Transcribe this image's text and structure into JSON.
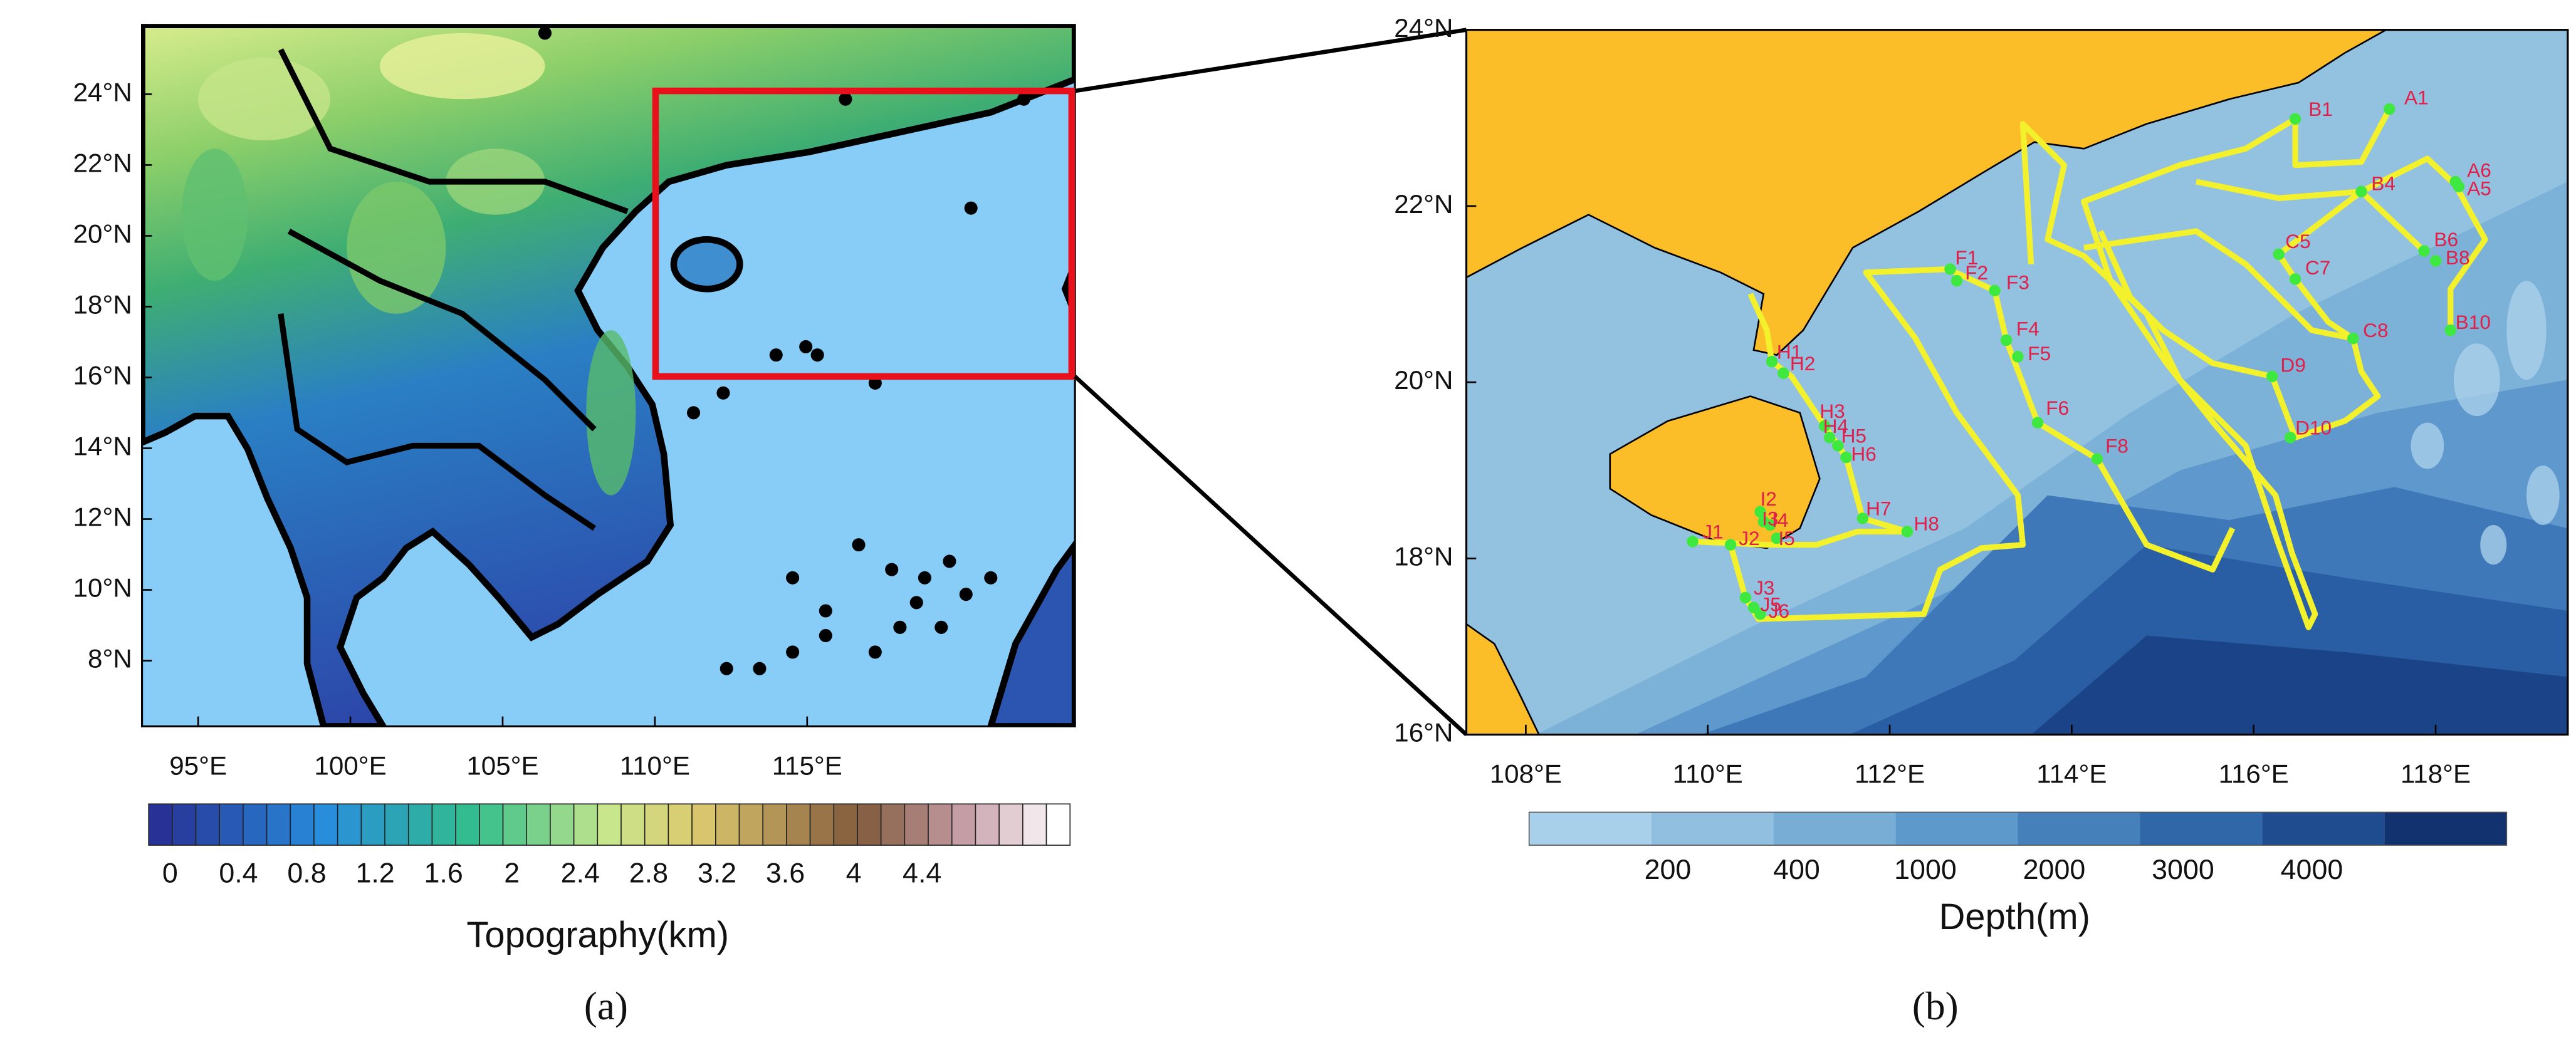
{
  "panel_a": {
    "lat_labels": [
      "24°N",
      "22°N",
      "20°N",
      "18°N",
      "16°N",
      "14°N",
      "12°N",
      "10°N",
      "8°N"
    ],
    "lon_labels": [
      "95°E",
      "100°E",
      "105°E",
      "110°E",
      "115°E"
    ],
    "colorbar": {
      "labels": [
        "0",
        "0.4",
        "0.8",
        "1.2",
        "1.6",
        "2",
        "2.4",
        "2.8",
        "3.2",
        "3.6",
        "4",
        "4.4"
      ],
      "title": "Topography(km)"
    },
    "caption": "(a)"
  },
  "panel_b": {
    "lat_labels": [
      "24°N",
      "22°N",
      "20°N",
      "18°N",
      "16°N"
    ],
    "lon_labels": [
      "108°E",
      "110°E",
      "112°E",
      "114°E",
      "116°E",
      "118°E"
    ],
    "colorbar": {
      "labels": [
        "200",
        "400",
        "1000",
        "2000",
        "3000",
        "4000"
      ],
      "title": "Depth(m)"
    },
    "stations": [
      "B1",
      "A1",
      "A6",
      "A5",
      "B4",
      "C5",
      "B6",
      "B8",
      "C7",
      "B10",
      "C8",
      "D9",
      "D10",
      "F1",
      "F2",
      "F3",
      "F4",
      "F5",
      "F6",
      "F8",
      "H1",
      "H2",
      "H3",
      "H4",
      "H5",
      "H6",
      "H7",
      "H8",
      "I2",
      "I3",
      "I4",
      "I5",
      "J1",
      "J2",
      "J3",
      "J5",
      "J6"
    ],
    "caption": "(b)"
  }
}
